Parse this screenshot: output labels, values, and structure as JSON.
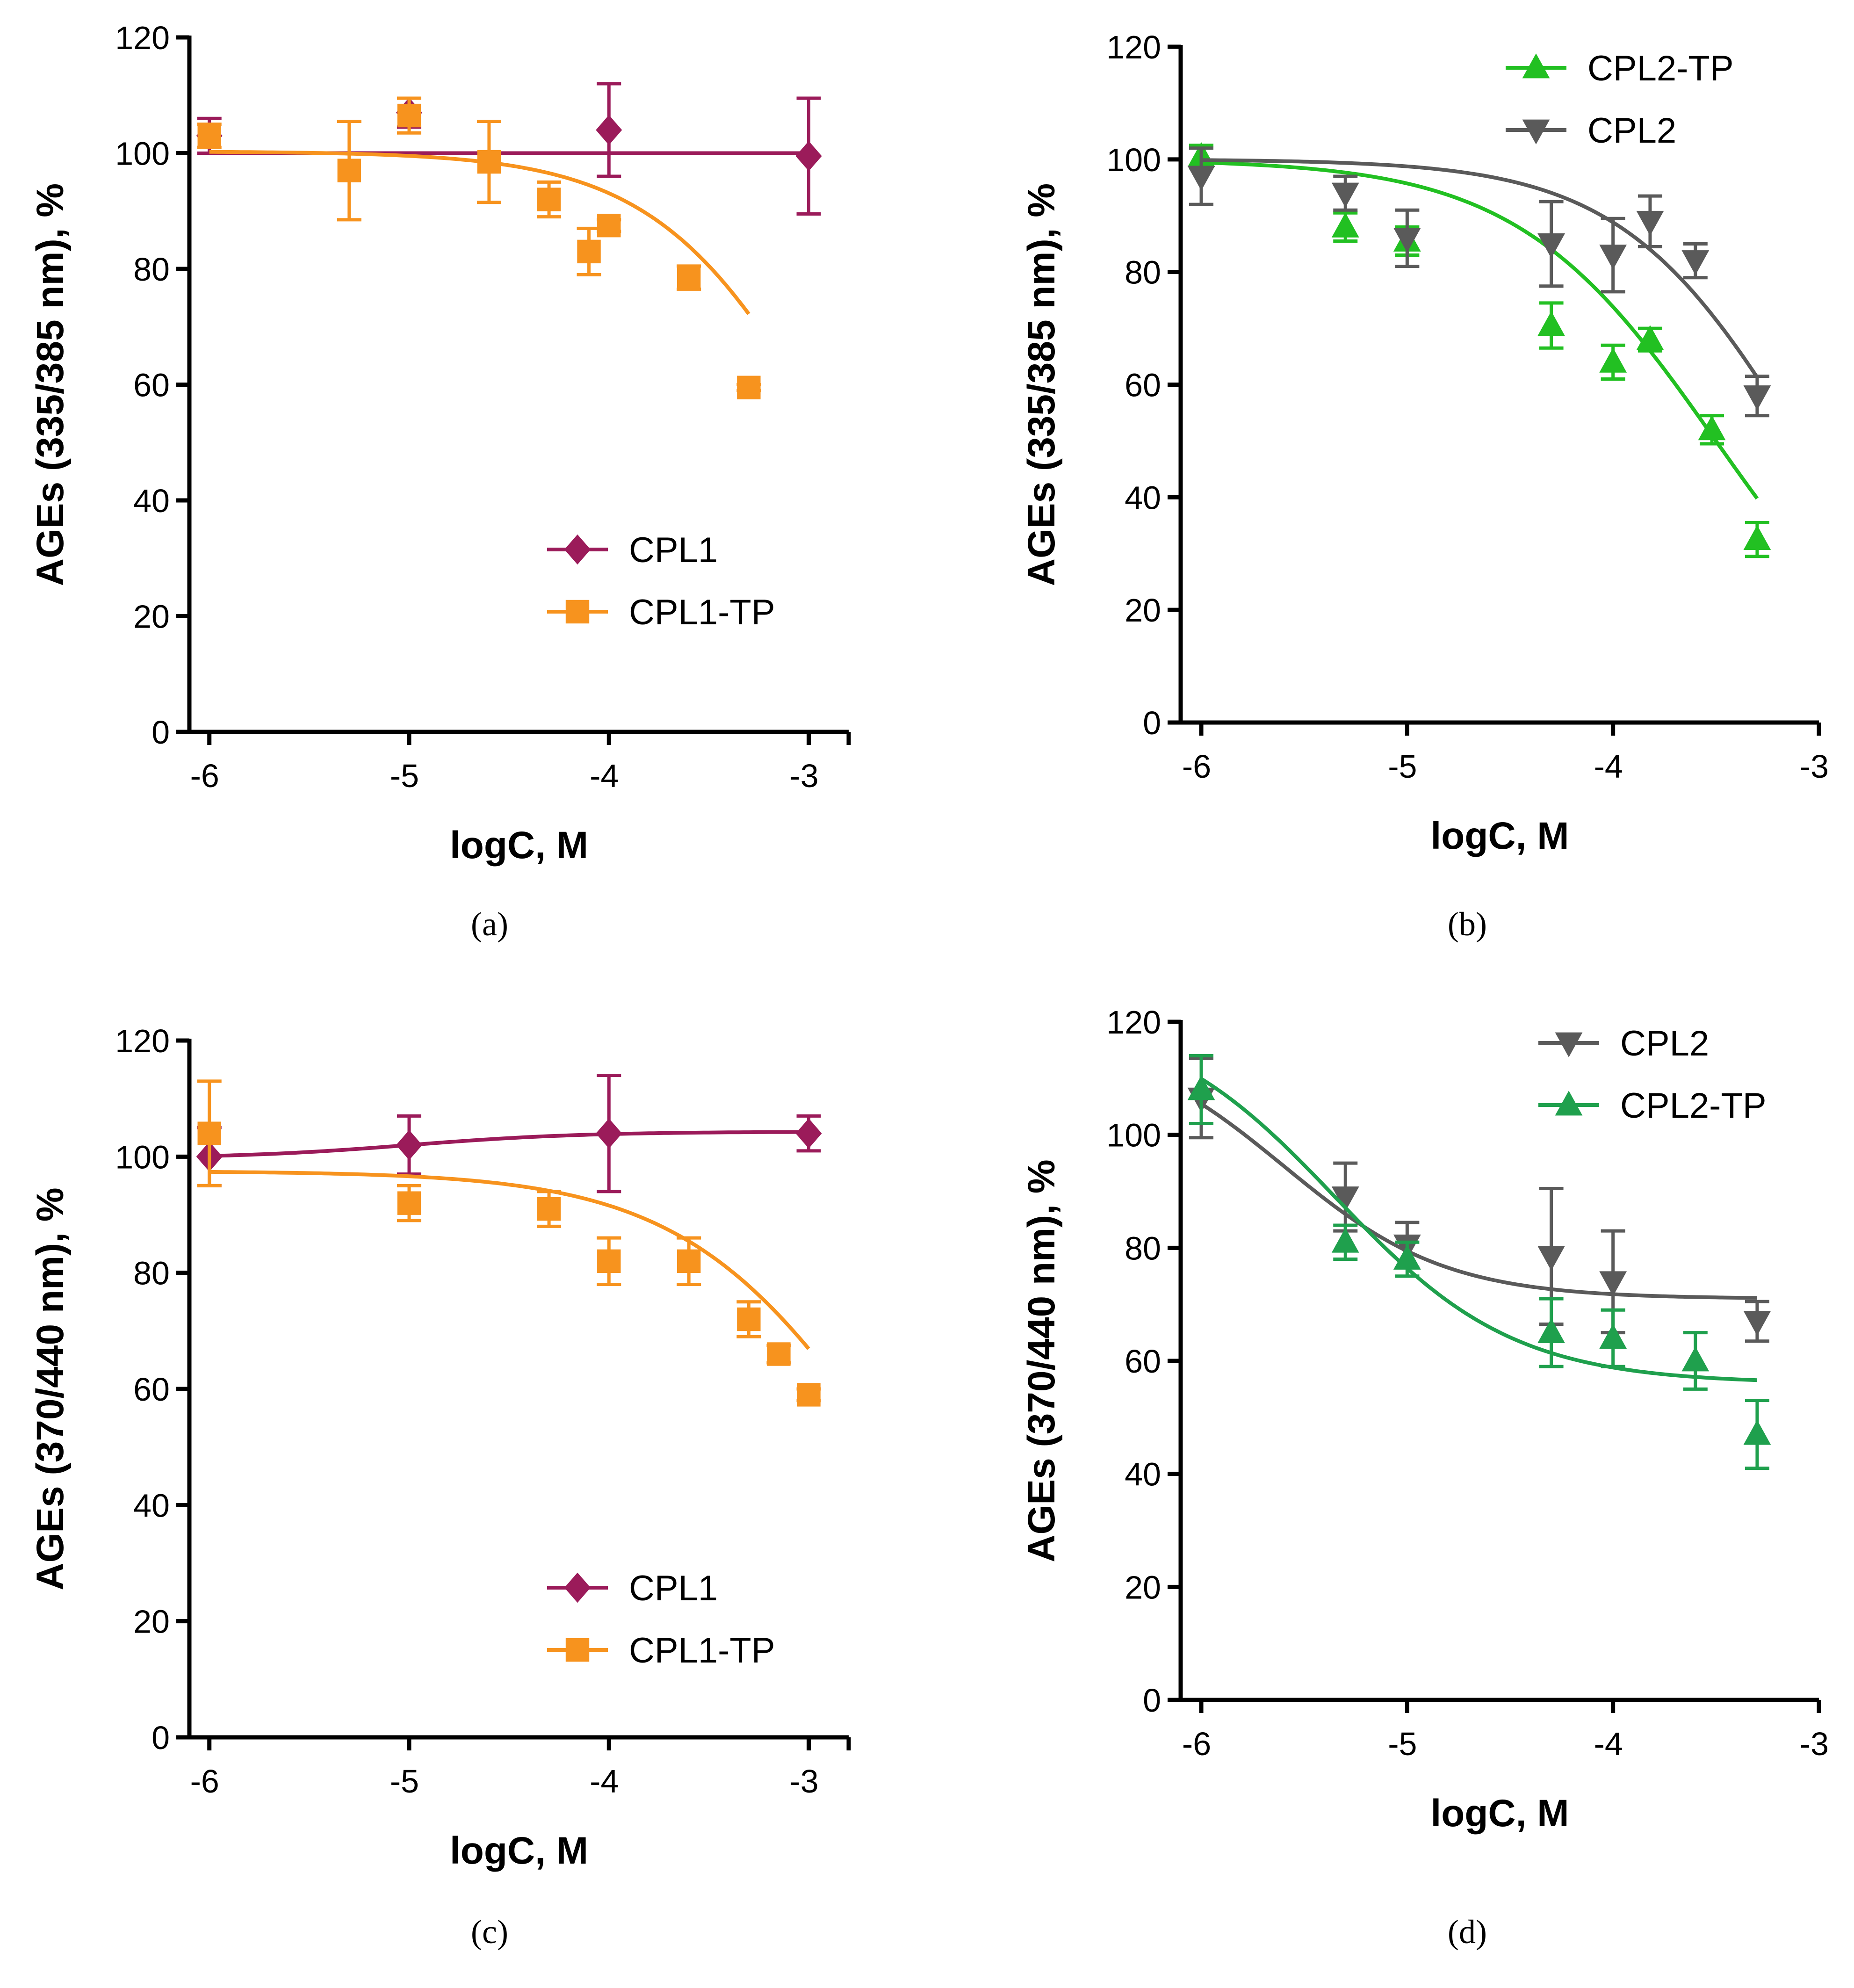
{
  "chart_data": [
    {
      "type": "scatter",
      "panel_label": "(a)",
      "xlabel": "logC, M",
      "ylabel": "AGEs (335/385 nm), %",
      "xlim": [
        -6.1,
        -2.8
      ],
      "ylim": [
        0,
        120
      ],
      "x_ticks": [
        "-6",
        "-5",
        "-4",
        "-3"
      ],
      "y_ticks": [
        "0",
        "20",
        "40",
        "60",
        "80",
        "100",
        "120"
      ],
      "legend_position": "lower-right",
      "series": [
        {
          "name": "CPL1",
          "color": "#9b1b5a",
          "marker": "diamond",
          "x": [
            -6,
            -5,
            -4,
            -3
          ],
          "y": [
            103,
            107,
            104,
            99.5
          ],
          "err": [
            3,
            2.5,
            8,
            10
          ],
          "curve": {
            "kind": "logistic",
            "top": 100,
            "bottom": 100,
            "logec50": -4,
            "hill": 1,
            "x_from": -6,
            "x_to": -3
          }
        },
        {
          "name": "CPL1-TP",
          "color": "#f7931e",
          "marker": "square",
          "x": [
            -6,
            -5.3,
            -5,
            -4.6,
            -4.3,
            -4.1,
            -4,
            -3.6,
            -3.3
          ],
          "y": [
            103,
            97,
            106.5,
            98.5,
            92,
            83,
            87.5,
            78.5,
            59.5
          ],
          "err": [
            2,
            8.5,
            3,
            7,
            3,
            4,
            1,
            2,
            0.5
          ],
          "curve": {
            "kind": "logistic",
            "top": 100.3,
            "bottom": 0,
            "logec50": -2.89,
            "hill": 1,
            "x_from": -6,
            "x_to": -3.3
          }
        }
      ]
    },
    {
      "type": "scatter",
      "panel_label": "(b)",
      "xlabel": "logC, M",
      "ylabel": "AGEs (335/385 nm), %",
      "xlim": [
        -6.1,
        -3
      ],
      "ylim": [
        0,
        120
      ],
      "x_ticks": [
        "-6",
        "-5",
        "-4",
        "-3"
      ],
      "y_ticks": [
        "0",
        "20",
        "40",
        "60",
        "80",
        "100",
        "120"
      ],
      "legend_position": "top-right",
      "series": [
        {
          "name": "CPL2-TP",
          "color": "#22c022",
          "marker": "triangle-up",
          "x": [
            -6,
            -5.3,
            -5,
            -4.3,
            -4,
            -3.82,
            -3.52,
            -3.3
          ],
          "y": [
            100.5,
            88,
            85.5,
            70.5,
            64,
            68,
            52,
            32.5
          ],
          "err": [
            2,
            2.5,
            2.5,
            4,
            3,
            2,
            2.5,
            3
          ],
          "curve": {
            "kind": "logistic",
            "top": 100,
            "bottom": 0,
            "logec50": -3.5,
            "hill": 0.9,
            "x_from": -6,
            "x_to": -3.3
          }
        },
        {
          "name": "CPL2",
          "color": "#5a5a5a",
          "marker": "triangle-down",
          "x": [
            -6,
            -5.3,
            -5,
            -4.3,
            -4,
            -3.82,
            -3.6,
            -3.3
          ],
          "y": [
            97,
            94,
            86,
            85,
            83,
            89,
            82,
            58
          ],
          "err": [
            5,
            3,
            5,
            7.5,
            6.5,
            4.5,
            3,
            3.5
          ],
          "curve": {
            "kind": "logistic",
            "top": 100,
            "bottom": 0,
            "logec50": -3.1,
            "hill": 1,
            "x_from": -6,
            "x_to": -3.3
          }
        }
      ]
    },
    {
      "type": "scatter",
      "panel_label": "(c)",
      "xlabel": "logC, M",
      "ylabel": "AGEs (370/440 nm), %",
      "xlim": [
        -6.1,
        -2.8
      ],
      "ylim": [
        0,
        120
      ],
      "x_ticks": [
        "-6",
        "-5",
        "-4",
        "-3"
      ],
      "y_ticks": [
        "0",
        "20",
        "40",
        "60",
        "80",
        "100",
        "120"
      ],
      "legend_position": "lower-right",
      "series": [
        {
          "name": "CPL1",
          "color": "#9b1b5a",
          "marker": "diamond",
          "x": [
            -6,
            -5,
            -4,
            -3
          ],
          "y": [
            100,
            102,
            104,
            104
          ],
          "err": [
            5,
            5,
            10,
            3
          ],
          "curve": {
            "kind": "logistic",
            "top": 99.7,
            "bottom": 104.3,
            "logec50": -5,
            "hill": 1,
            "x_from": -6,
            "x_to": -3
          }
        },
        {
          "name": "CPL1-TP",
          "color": "#f7931e",
          "marker": "square",
          "x": [
            -6,
            -5,
            -4.3,
            -4,
            -3.6,
            -3.3,
            -3.15,
            -3
          ],
          "y": [
            104,
            92,
            91,
            82,
            82,
            72,
            66,
            59
          ],
          "err": [
            9,
            3,
            3,
            4,
            4,
            3,
            1.5,
            1
          ],
          "curve": {
            "kind": "logistic",
            "top": 97.5,
            "bottom": 0,
            "logec50": -2.6,
            "hill": 0.85,
            "x_from": -6,
            "x_to": -3
          }
        }
      ]
    },
    {
      "type": "scatter",
      "panel_label": "(d)",
      "xlabel": "logC, M",
      "ylabel": "AGEs (370/440 nm), %",
      "xlim": [
        -6.1,
        -3
      ],
      "ylim": [
        0,
        120
      ],
      "x_ticks": [
        "-6",
        "-5",
        "-4",
        "-3"
      ],
      "y_ticks": [
        "0",
        "20",
        "40",
        "60",
        "80",
        "100",
        "120"
      ],
      "legend_position": "top-right",
      "series": [
        {
          "name": "CPL2",
          "color": "#5a5a5a",
          "marker": "triangle-down",
          "x": [
            -6,
            -5.3,
            -5,
            -4.3,
            -4,
            -3.3
          ],
          "y": [
            106.5,
            89,
            80.5,
            78.5,
            74,
            67
          ],
          "err": [
            7,
            6,
            4,
            12,
            9,
            3.5
          ],
          "curve": {
            "kind": "logistic",
            "top": 118,
            "bottom": 71,
            "logec50": -5.6,
            "hill": 1.1,
            "x_from": -6,
            "x_to": -3.3
          }
        },
        {
          "name": "CPL2-TP",
          "color": "#1fa04d",
          "marker": "triangle-up",
          "x": [
            -6,
            -5.3,
            -5,
            -4.3,
            -4,
            -3.6,
            -3.3
          ],
          "y": [
            108,
            81,
            78,
            65,
            64,
            60,
            47
          ],
          "err": [
            6,
            3,
            3,
            6,
            5,
            5,
            6
          ],
          "curve": {
            "kind": "logistic",
            "top": 122,
            "bottom": 56,
            "logec50": -5.35,
            "hill": 1,
            "x_from": -6,
            "x_to": -3.3
          }
        }
      ]
    }
  ]
}
